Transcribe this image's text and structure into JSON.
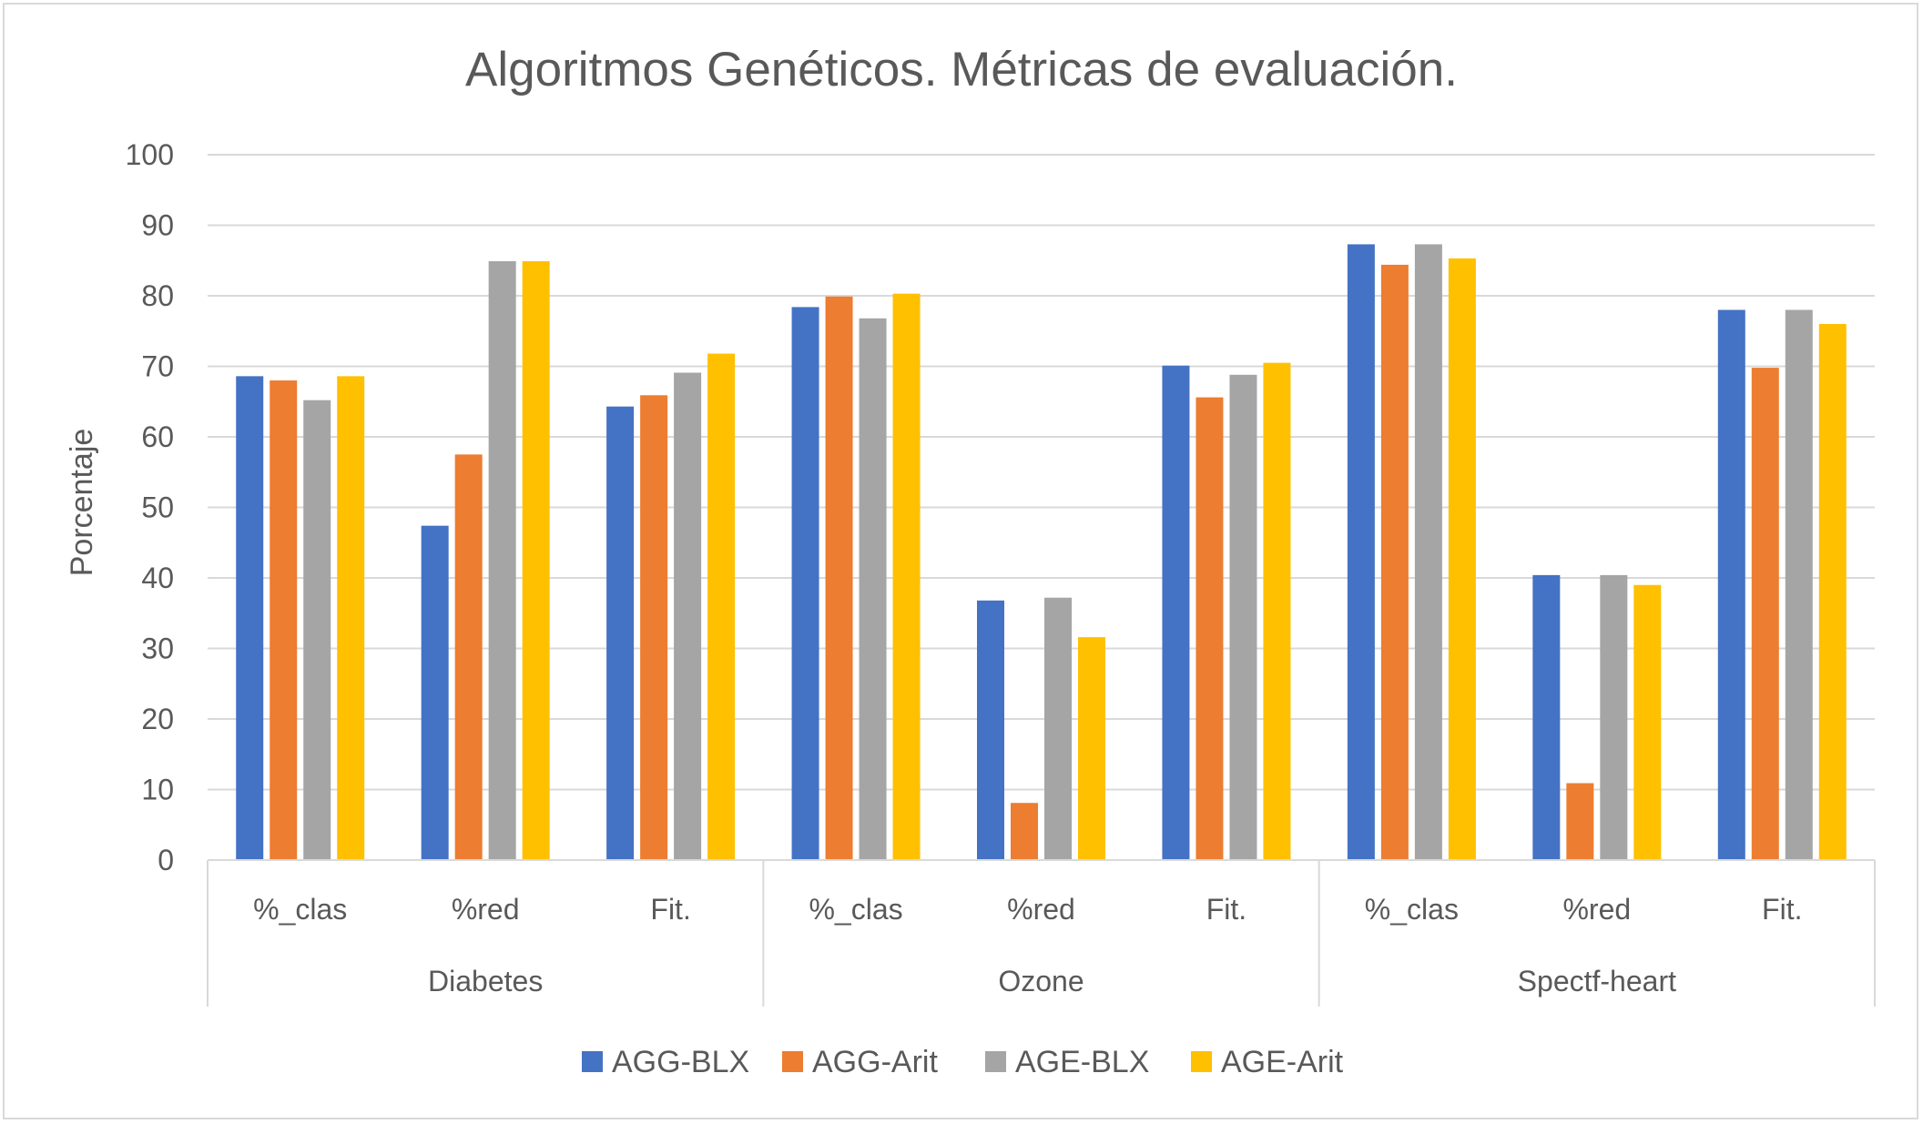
{
  "chart_data": {
    "type": "bar",
    "title": "Algoritmos Genéticos. Métricas de evaluación.",
    "xlabel": "",
    "ylabel": "Porcentaje",
    "ylim": [
      0,
      100
    ],
    "yticks": [
      0,
      10,
      20,
      30,
      40,
      50,
      60,
      70,
      80,
      90,
      100
    ],
    "grid": true,
    "legend_position": "bottom",
    "groups": [
      {
        "name": "Diabetes",
        "categories": [
          "%_clas",
          "%red",
          "Fit."
        ]
      },
      {
        "name": "Ozone",
        "categories": [
          "%_clas",
          "%red",
          "Fit."
        ]
      },
      {
        "name": "Spectf-heart",
        "categories": [
          "%_clas",
          "%red",
          "Fit."
        ]
      }
    ],
    "series": [
      {
        "name": "AGG-BLX",
        "color": "#4472c4",
        "values": [
          68.6,
          47.4,
          64.3,
          78.4,
          36.8,
          70.1,
          87.3,
          40.4,
          78.0
        ]
      },
      {
        "name": "AGG-Arit",
        "color": "#ed7d31",
        "values": [
          68.0,
          57.5,
          65.9,
          79.9,
          8.1,
          65.6,
          84.4,
          10.9,
          69.8
        ]
      },
      {
        "name": "AGE-BLX",
        "color": "#a5a5a5",
        "values": [
          65.2,
          84.9,
          69.1,
          76.8,
          37.2,
          68.8,
          87.3,
          40.4,
          78.0
        ]
      },
      {
        "name": "AGE-Arit",
        "color": "#ffc000",
        "values": [
          68.6,
          84.9,
          71.8,
          80.3,
          31.6,
          70.5,
          85.3,
          39.0,
          76.0
        ]
      }
    ]
  }
}
